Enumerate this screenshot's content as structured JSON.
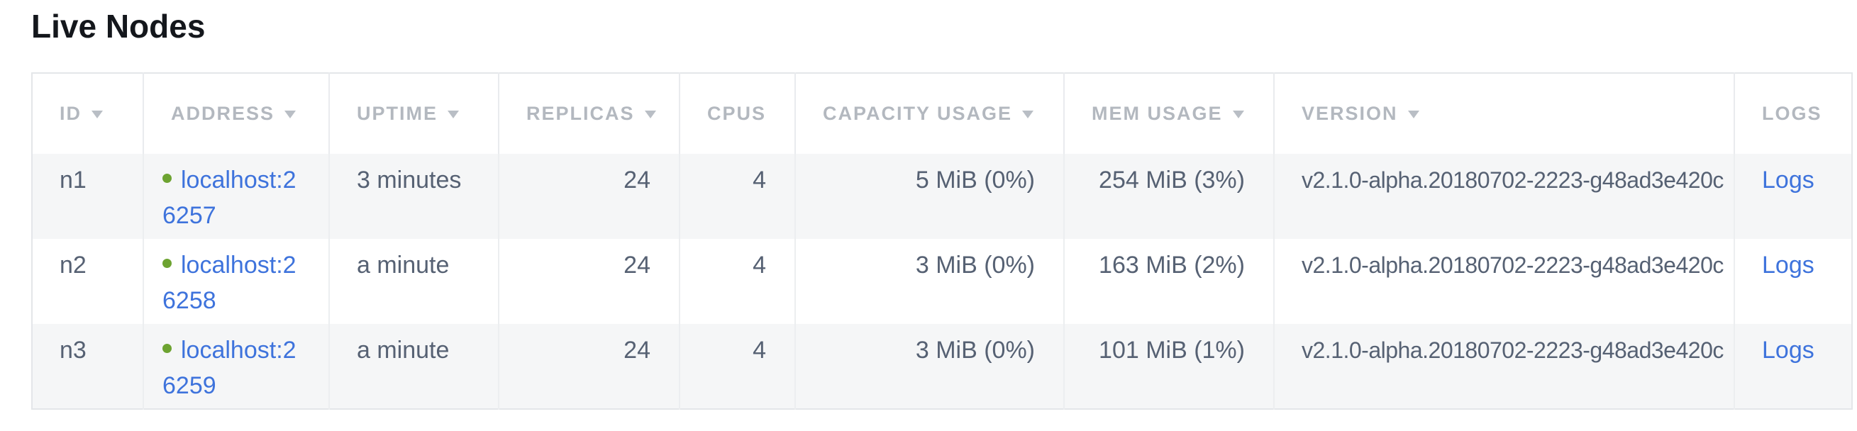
{
  "page": {
    "title": "Live Nodes"
  },
  "colors": {
    "link_blue": "#3e73dc",
    "live_status_green": "#6da331",
    "header_text_gray": "#b3b8bf",
    "cell_text_slate": "#566173",
    "row_alt_background": "#f5f6f7",
    "table_border": "#e4e6e9"
  },
  "table": {
    "columns": [
      {
        "label": "ID",
        "sort_arrow": true
      },
      {
        "label": "ADDRESS",
        "sort_arrow": true
      },
      {
        "label": "UPTIME",
        "sort_arrow": true
      },
      {
        "label": "REPLICAS",
        "sort_arrow": true
      },
      {
        "label": "CPUS",
        "sort_arrow": false
      },
      {
        "label": "CAPACITY USAGE",
        "sort_arrow": true
      },
      {
        "label": "MEM USAGE",
        "sort_arrow": true
      },
      {
        "label": "VERSION",
        "sort_arrow": true
      },
      {
        "label": "LOGS",
        "sort_arrow": false
      }
    ],
    "rows": [
      {
        "id": "n1",
        "status": "live",
        "address": "localhost:26257",
        "uptime": "3 minutes",
        "replicas": "24",
        "cpus": "4",
        "capacity_usage": "5 MiB (0%)",
        "mem_usage": "254 MiB (3%)",
        "version": "v2.1.0-alpha.20180702-2223-g48ad3e420c",
        "logs_label": "Logs"
      },
      {
        "id": "n2",
        "status": "live",
        "address": "localhost:26258",
        "uptime": "a minute",
        "replicas": "24",
        "cpus": "4",
        "capacity_usage": "3 MiB (0%)",
        "mem_usage": "163 MiB (2%)",
        "version": "v2.1.0-alpha.20180702-2223-g48ad3e420c",
        "logs_label": "Logs"
      },
      {
        "id": "n3",
        "status": "live",
        "address": "localhost:26259",
        "uptime": "a minute",
        "replicas": "24",
        "cpus": "4",
        "capacity_usage": "3 MiB (0%)",
        "mem_usage": "101 MiB (1%)",
        "version": "v2.1.0-alpha.20180702-2223-g48ad3e420c",
        "logs_label": "Logs"
      }
    ]
  }
}
